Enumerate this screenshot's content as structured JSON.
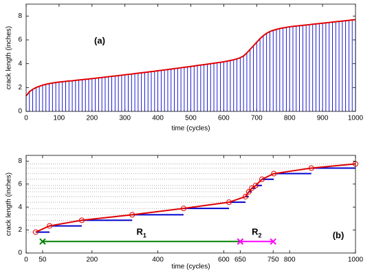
{
  "chart_data": [
    {
      "type": "stem",
      "xlabel": "time (cycles)",
      "ylabel": "crack length (inches)",
      "annotation": "(a)",
      "x": [
        0,
        10,
        20,
        30,
        40,
        50,
        60,
        70,
        80,
        90,
        100,
        110,
        120,
        130,
        140,
        150,
        160,
        170,
        180,
        190,
        200,
        210,
        220,
        230,
        240,
        250,
        260,
        270,
        280,
        290,
        300,
        310,
        320,
        330,
        340,
        350,
        360,
        370,
        380,
        390,
        400,
        410,
        420,
        430,
        440,
        450,
        460,
        470,
        480,
        490,
        500,
        510,
        520,
        530,
        540,
        550,
        560,
        570,
        580,
        590,
        600,
        610,
        620,
        630,
        640,
        650,
        660,
        670,
        680,
        690,
        700,
        710,
        720,
        730,
        740,
        750,
        760,
        770,
        780,
        790,
        800,
        810,
        820,
        830,
        840,
        850,
        860,
        870,
        880,
        890,
        900,
        910,
        920,
        930,
        940,
        950,
        960,
        970,
        980,
        990,
        1000
      ],
      "values": [
        1.3,
        1.65,
        1.85,
        2.0,
        2.1,
        2.2,
        2.27,
        2.33,
        2.38,
        2.42,
        2.46,
        2.49,
        2.52,
        2.55,
        2.57,
        2.6,
        2.63,
        2.66,
        2.69,
        2.72,
        2.75,
        2.78,
        2.81,
        2.84,
        2.88,
        2.91,
        2.94,
        2.97,
        3.0,
        3.04,
        3.07,
        3.1,
        3.13,
        3.17,
        3.2,
        3.24,
        3.27,
        3.3,
        3.34,
        3.37,
        3.41,
        3.44,
        3.48,
        3.51,
        3.55,
        3.59,
        3.62,
        3.66,
        3.7,
        3.73,
        3.77,
        3.81,
        3.85,
        3.89,
        3.92,
        3.96,
        4.0,
        4.04,
        4.08,
        4.12,
        4.16,
        4.21,
        4.27,
        4.33,
        4.4,
        4.5,
        4.65,
        4.9,
        5.2,
        5.5,
        5.8,
        6.1,
        6.35,
        6.55,
        6.7,
        6.8,
        6.88,
        6.95,
        7.0,
        7.05,
        7.1,
        7.13,
        7.16,
        7.19,
        7.22,
        7.25,
        7.28,
        7.31,
        7.34,
        7.37,
        7.4,
        7.43,
        7.46,
        7.49,
        7.52,
        7.55,
        7.58,
        7.61,
        7.64,
        7.67,
        7.7
      ],
      "line_color": "#e00000",
      "stem_color": "#0000cc",
      "xlim": [
        0,
        1000
      ],
      "xticks": [
        0,
        100,
        200,
        300,
        400,
        500,
        600,
        700,
        800,
        900,
        1000
      ],
      "ylim": [
        0,
        9
      ],
      "yticks": [
        0,
        2,
        4,
        6,
        8
      ]
    },
    {
      "type": "step",
      "xlabel": "time (cycles)",
      "ylabel": "crack length (inches)",
      "annotation": "(b)",
      "x": [
        29,
        71,
        169,
        322,
        478,
        616,
        666,
        676,
        685,
        697,
        716,
        752,
        866,
        1000
      ],
      "values": [
        1.82,
        2.36,
        2.85,
        3.33,
        3.88,
        4.42,
        4.91,
        5.33,
        5.64,
        5.88,
        6.42,
        6.91,
        7.39,
        7.76
      ],
      "line_color": "#e00000",
      "step_color": "#0000cc",
      "regions": [
        {
          "label": "R",
          "subscript": "1",
          "start": 50,
          "end": 650,
          "level": 1,
          "color": "#008000"
        },
        {
          "label": "R",
          "subscript": "2",
          "start": 650,
          "end": 750,
          "level": 1,
          "color": "#ff00ff"
        }
      ],
      "xlim": [
        0,
        1000
      ],
      "xticks": [
        0,
        50,
        200,
        400,
        600,
        650,
        750,
        800,
        1000
      ],
      "ylim": [
        0,
        8.5
      ],
      "yticks": [
        0,
        2,
        4,
        6,
        8
      ]
    }
  ]
}
